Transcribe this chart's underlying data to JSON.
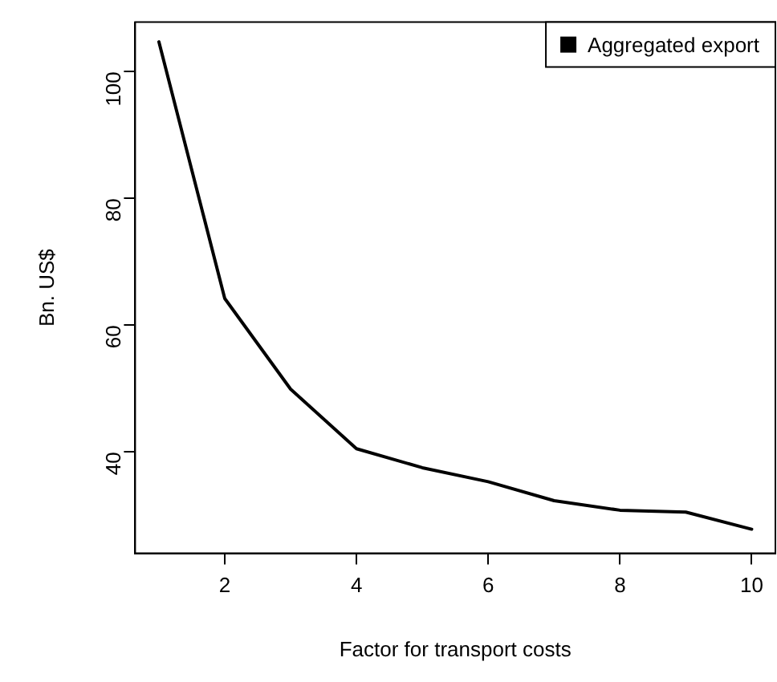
{
  "chart_data": {
    "type": "line",
    "xlabel": "Factor for transport costs",
    "ylabel": "Bn. US$",
    "x": [
      1,
      2,
      3,
      4,
      5,
      6,
      7,
      8,
      9,
      10
    ],
    "series": [
      {
        "name": "Aggregated export",
        "color": "#000000",
        "values": [
          104.7,
          64.2,
          49.9,
          40.5,
          37.5,
          35.3,
          32.3,
          30.8,
          30.5,
          27.8
        ]
      }
    ],
    "xlim": [
      0.64,
      10.36
    ],
    "ylim": [
      24,
      107.8
    ],
    "xticks": [
      2,
      4,
      6,
      8,
      10
    ],
    "yticks": [
      40,
      60,
      80,
      100
    ],
    "grid": false,
    "legend": "top right",
    "marker": "none",
    "line_style": "solid"
  }
}
